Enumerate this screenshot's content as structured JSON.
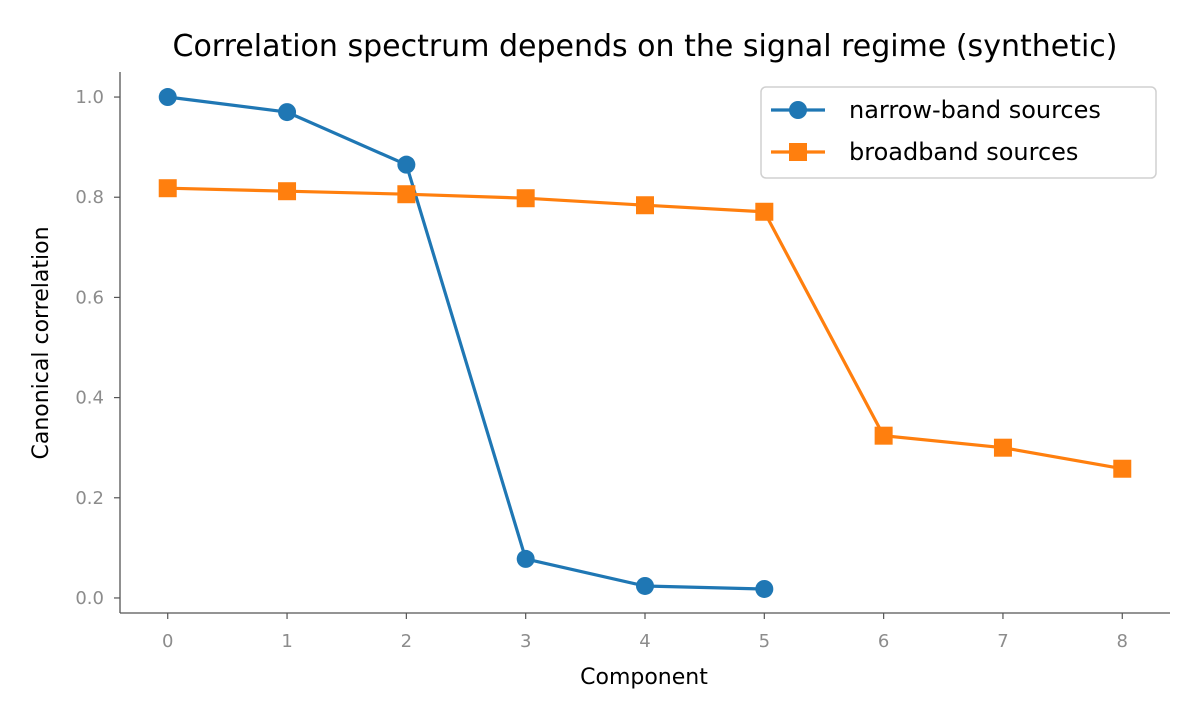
{
  "chart_data": {
    "type": "line",
    "title": "Correlation spectrum depends on the signal regime (synthetic)",
    "xlabel": "Component",
    "ylabel": "Canonical correlation",
    "xlim": [
      -0.4,
      8.4
    ],
    "ylim": [
      -0.03,
      1.05
    ],
    "xticks": [
      "0",
      "1",
      "2",
      "3",
      "4",
      "5",
      "6",
      "7",
      "8"
    ],
    "yticks": [
      "0.0",
      "0.2",
      "0.4",
      "0.6",
      "0.8",
      "1.0"
    ],
    "grid": false,
    "legend_position": "top-right",
    "series": [
      {
        "name": "narrow-band sources",
        "color": "#1f77b4",
        "marker": "circle",
        "x": [
          0,
          1,
          2,
          3,
          4,
          5
        ],
        "y": [
          1.0,
          0.97,
          0.865,
          0.078,
          0.024,
          0.018
        ]
      },
      {
        "name": "broadband sources",
        "color": "#ff7f0e",
        "marker": "square",
        "x": [
          0,
          1,
          2,
          3,
          4,
          5,
          6,
          7,
          8
        ],
        "y": [
          0.818,
          0.812,
          0.806,
          0.798,
          0.784,
          0.771,
          0.324,
          0.3,
          0.258
        ]
      }
    ]
  }
}
